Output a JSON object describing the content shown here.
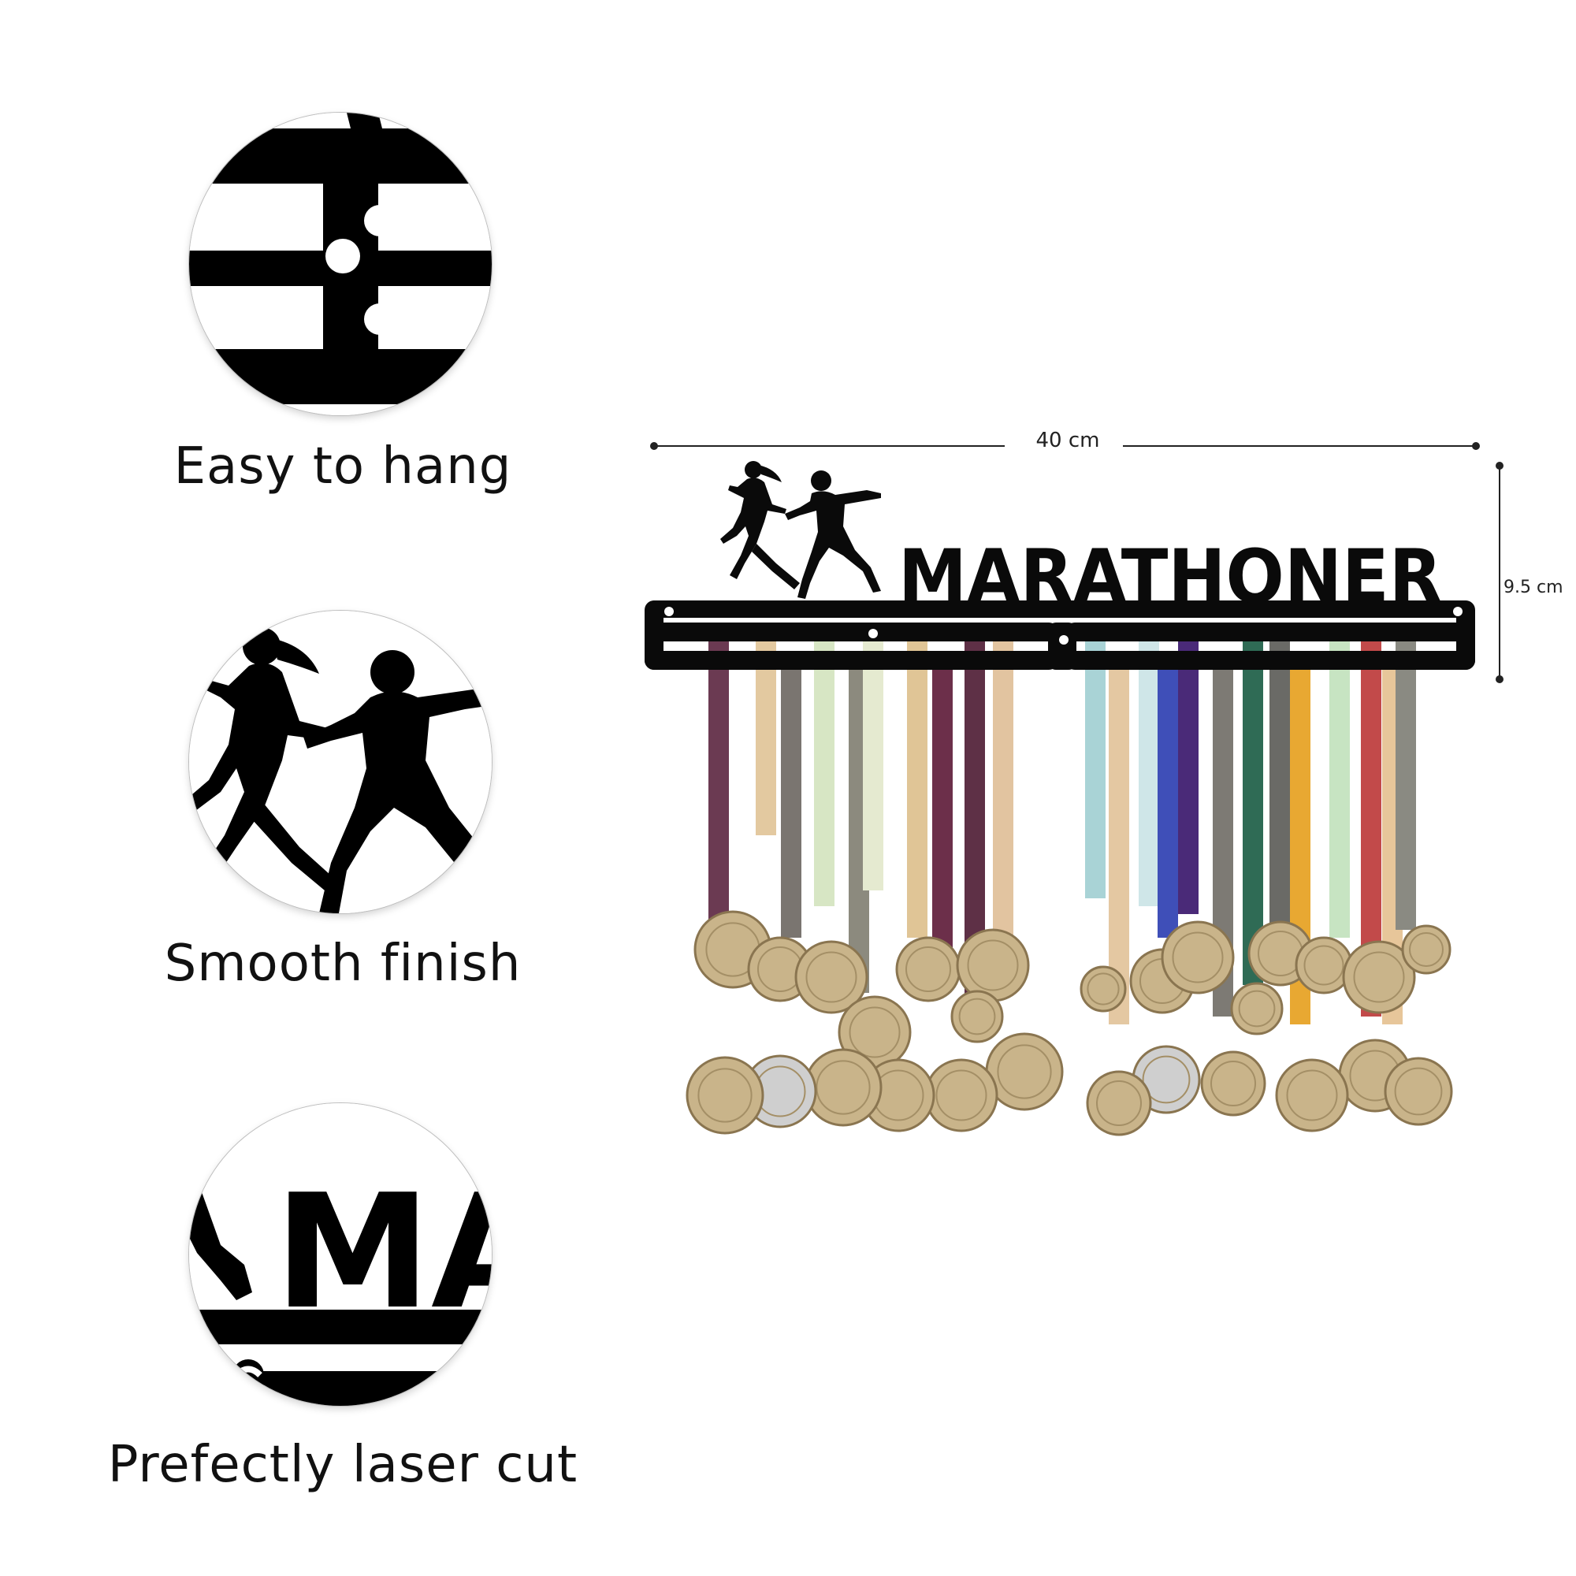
{
  "features": [
    {
      "caption": "Easy to hang",
      "icon": "hanger-slot-closeup-icon"
    },
    {
      "caption": "Smooth finish",
      "icon": "runners-silhouette-icon"
    },
    {
      "caption": "Prefectly laser cut",
      "icon": "laser-cut-letters-icon"
    }
  ],
  "product": {
    "name": "MARATHONER",
    "closeup_letters": "MA",
    "width_label": "40 cm",
    "height_label": "9.5 cm",
    "colors": {
      "metal": "#0a0a0a",
      "gold": "#c9b48a",
      "silver": "#cfcfcf"
    },
    "ribbon_colors": [
      "#6b3a52",
      "#e3c9a0",
      "#7a7570",
      "#d7e6c4",
      "#8c8a7e",
      "#e5ead0",
      "#e0c596",
      "#6c2f4a",
      "#5e3046",
      "#e2c4a0",
      "#a9d3d6",
      "#e4c8a2",
      "#cfe6e8",
      "#3f4fb8",
      "#4a2a78",
      "#7d7a74",
      "#2f6b55",
      "#6a6a66",
      "#e8a832",
      "#c7e4c2",
      "#c24a4a",
      "#e7c69a",
      "#8a8a82"
    ]
  }
}
